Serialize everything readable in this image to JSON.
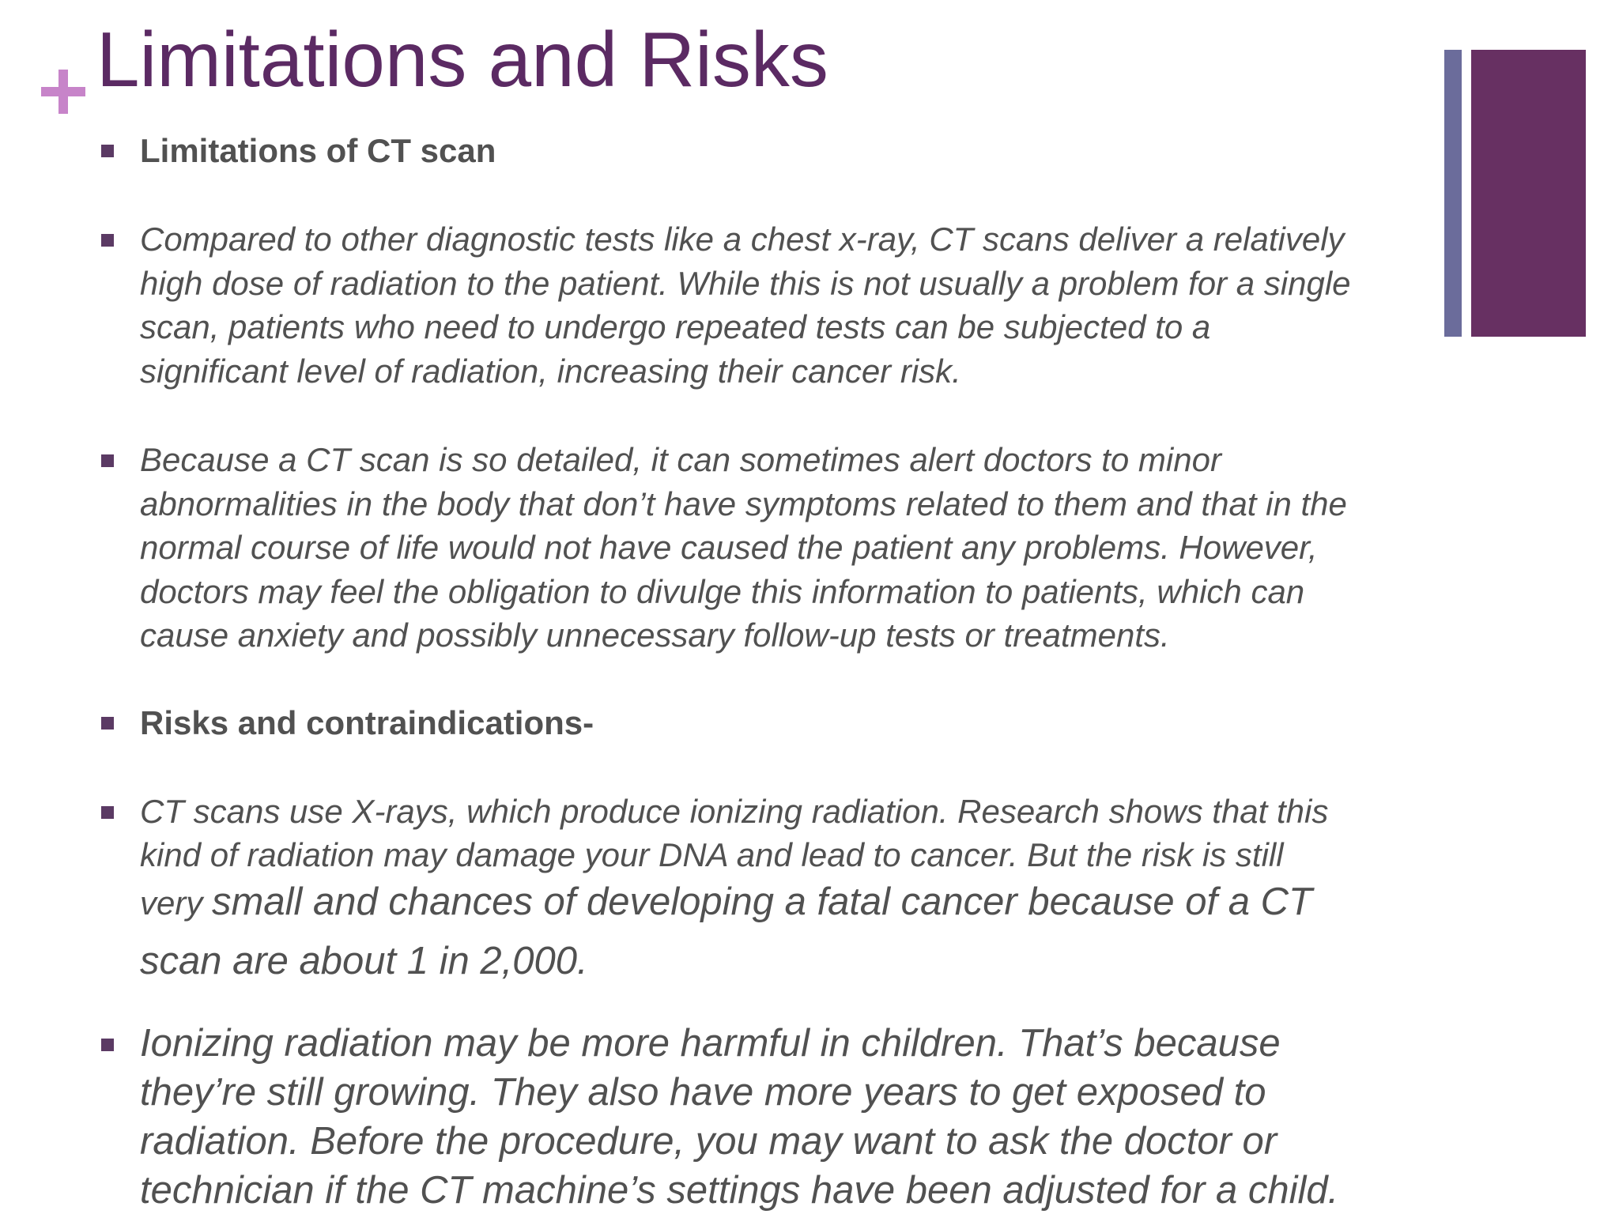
{
  "colors": {
    "title": "#5b2a63",
    "plus": "#c784c9",
    "bullet": "#5b3a64",
    "text": "#515151",
    "bar_thin": "#6b6c9b",
    "bar_wide": "#673062"
  },
  "slide": {
    "title": "Limitations and Risks",
    "plus_icon": "plus-icon",
    "bullets": [
      {
        "style": "heading",
        "lines": [
          "Limitations of CT scan"
        ]
      },
      {
        "style": "italic",
        "lines": [
          "Compared to other diagnostic tests like a chest x-ray, CT scans deliver a relatively",
          "high dose of radiation to the patient. While this is not usually a problem for a single",
          "scan, patients who need to undergo repeated tests can be subjected to a",
          "significant level of radiation, increasing their cancer risk."
        ]
      },
      {
        "style": "italic",
        "lines": [
          "Because a CT scan is so detailed, it can sometimes alert doctors to minor",
          "abnormalities in the body that don’t have symptoms related to them and that in the",
          "normal course of life would not have caused the patient any problems. However,",
          "doctors may feel the obligation to divulge this information to patients, which can",
          "cause anxiety and possibly unnecessary follow-up tests or treatments."
        ]
      },
      {
        "style": "heading",
        "lines": [
          "Risks and contraindications-"
        ]
      },
      {
        "style": "italic-mixed",
        "lines": [
          "CT scans use X-rays, which produce ionizing radiation. Research shows that this",
          "kind of radiation may damage your DNA and lead to cancer. But the risk is still"
        ],
        "line3_small": "very ",
        "line3_large": "small and chances of developing a fatal cancer because of a CT",
        "line4": "scan are about 1 in 2,000."
      },
      {
        "style": "italic-large",
        "lines": [
          "Ionizing radiation may be more harmful in children. That’s because",
          "they’re still growing. They also have more years to get exposed to",
          "radiation. Before the procedure, you may want to ask the doctor or",
          "technician if the CT machine’s settings have been adjusted for a child."
        ]
      }
    ]
  }
}
